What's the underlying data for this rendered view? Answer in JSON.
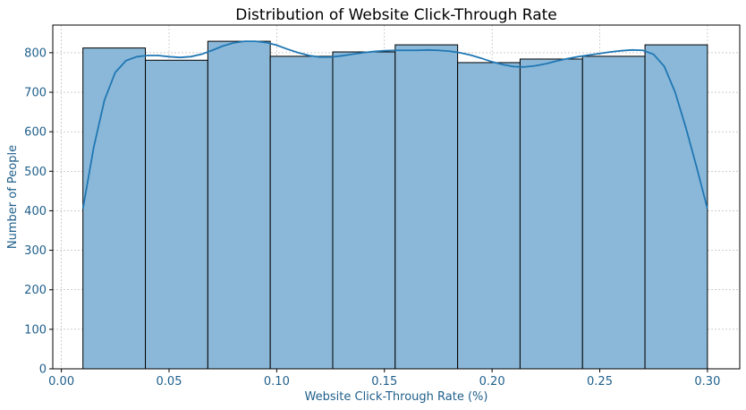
{
  "chart_data": {
    "type": "histogram",
    "title": "Distribution of Website Click-Through Rate",
    "xlabel": "Website Click-Through Rate (%)",
    "ylabel": "Number of People",
    "xlim": [
      -0.004,
      0.315
    ],
    "ylim": [
      0,
      870
    ],
    "x_ticks": [
      0.0,
      0.05,
      0.1,
      0.15,
      0.2,
      0.25,
      0.3
    ],
    "x_tick_labels": [
      "0.00",
      "0.05",
      "0.10",
      "0.15",
      "0.20",
      "0.25",
      "0.30"
    ],
    "y_ticks": [
      0,
      100,
      200,
      300,
      400,
      500,
      600,
      700,
      800
    ],
    "y_tick_labels": [
      "0",
      "100",
      "200",
      "300",
      "400",
      "500",
      "600",
      "700",
      "800"
    ],
    "grid": true,
    "bins": [
      {
        "x0": 0.01,
        "x1": 0.039,
        "count": 812
      },
      {
        "x0": 0.039,
        "x1": 0.068,
        "count": 781
      },
      {
        "x0": 0.068,
        "x1": 0.097,
        "count": 829
      },
      {
        "x0": 0.097,
        "x1": 0.126,
        "count": 791
      },
      {
        "x0": 0.126,
        "x1": 0.155,
        "count": 802
      },
      {
        "x0": 0.155,
        "x1": 0.184,
        "count": 820
      },
      {
        "x0": 0.184,
        "x1": 0.213,
        "count": 775
      },
      {
        "x0": 0.213,
        "x1": 0.242,
        "count": 784
      },
      {
        "x0": 0.242,
        "x1": 0.271,
        "count": 791
      },
      {
        "x0": 0.271,
        "x1": 0.3,
        "count": 820
      }
    ],
    "kde": {
      "x": [
        0.01,
        0.015,
        0.02,
        0.025,
        0.03,
        0.035,
        0.04,
        0.045,
        0.05,
        0.055,
        0.06,
        0.065,
        0.07,
        0.075,
        0.08,
        0.085,
        0.09,
        0.095,
        0.1,
        0.105,
        0.11,
        0.115,
        0.12,
        0.125,
        0.13,
        0.135,
        0.14,
        0.145,
        0.15,
        0.155,
        0.16,
        0.165,
        0.17,
        0.175,
        0.18,
        0.185,
        0.19,
        0.195,
        0.2,
        0.205,
        0.21,
        0.215,
        0.22,
        0.225,
        0.23,
        0.235,
        0.24,
        0.245,
        0.25,
        0.255,
        0.26,
        0.265,
        0.27,
        0.275,
        0.28,
        0.285,
        0.29,
        0.295,
        0.3
      ],
      "y": [
        405,
        560,
        680,
        750,
        780,
        790,
        793,
        793,
        790,
        788,
        790,
        796,
        806,
        817,
        825,
        829,
        829,
        826,
        819,
        809,
        800,
        793,
        789,
        789,
        792,
        796,
        800,
        803,
        805,
        806,
        806,
        806,
        807,
        806,
        804,
        800,
        794,
        786,
        777,
        770,
        765,
        764,
        767,
        772,
        779,
        785,
        790,
        794,
        798,
        802,
        805,
        807,
        806,
        796,
        765,
        700,
        610,
        510,
        405
      ]
    },
    "colors": {
      "bar_fill": "#8bb8d8",
      "bar_edge": "#000000",
      "kde_line": "#1f77b4",
      "axis_text": "#1f5f8b",
      "grid": "#b0b0b0"
    }
  }
}
